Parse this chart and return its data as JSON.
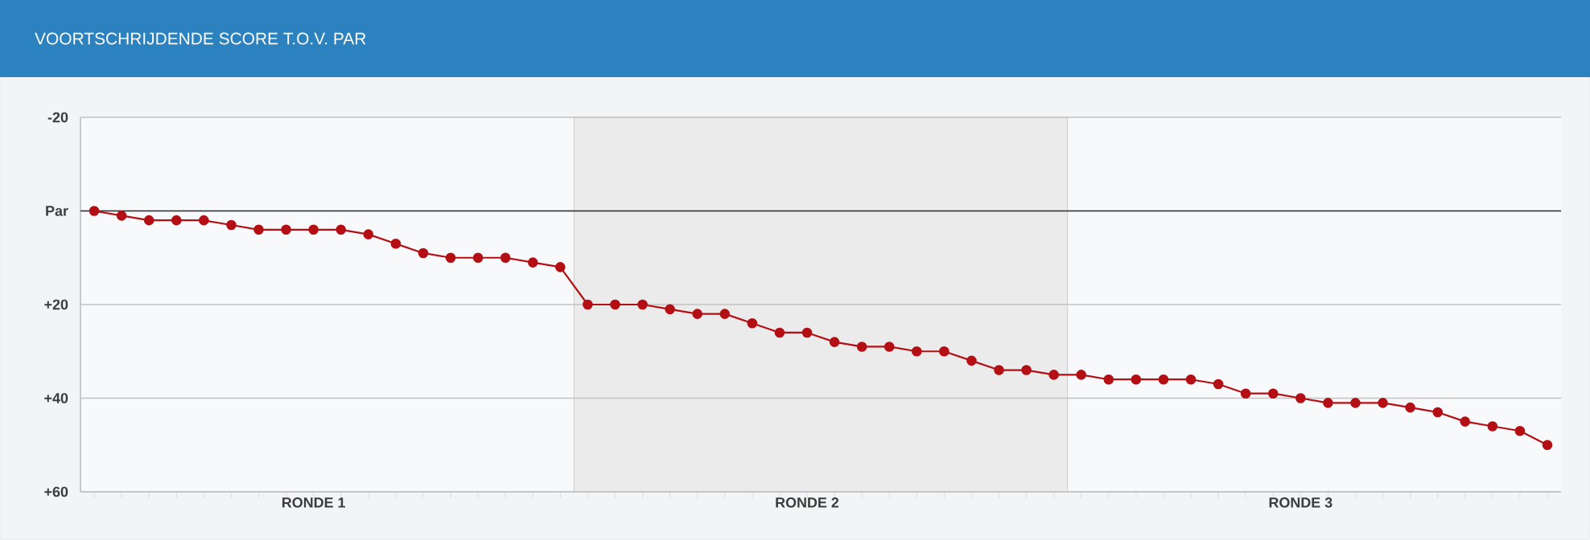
{
  "chart_data": {
    "type": "line",
    "title": "VOORTSCHRIJDENDE SCORE T.O.V. PAR",
    "categories": [
      null,
      null,
      null,
      null,
      null,
      null,
      null,
      null,
      "RONDE 1",
      null,
      null,
      null,
      null,
      null,
      null,
      null,
      null,
      null,
      null,
      null,
      null,
      null,
      null,
      null,
      null,
      null,
      "RONDE 2",
      null,
      null,
      null,
      null,
      null,
      null,
      null,
      null,
      null,
      null,
      null,
      null,
      null,
      null,
      null,
      null,
      null,
      "RONDE 3",
      null,
      null,
      null,
      null,
      null,
      null,
      null,
      null,
      null
    ],
    "series": [
      {
        "color": "#b30f14",
        "values": [
          0,
          1,
          2,
          2,
          2,
          3,
          4,
          4,
          4,
          4,
          5,
          7,
          9,
          10,
          10,
          10,
          11,
          12,
          20,
          20,
          20,
          21,
          22,
          22,
          24,
          26,
          26,
          28,
          29,
          29,
          30,
          30,
          32,
          34,
          34,
          35,
          35,
          36,
          36,
          36,
          36,
          37,
          39,
          39,
          40,
          41,
          41,
          41,
          42,
          43,
          45,
          46,
          47,
          50
        ]
      }
    ],
    "ylim": [
      60,
      -20
    ],
    "yticks": [
      -20,
      {
        "value": 0,
        "label": "Par"
      },
      {
        "value": 20,
        "label": "+20"
      },
      {
        "value": 40,
        "label": "+40"
      },
      {
        "value": 60,
        "label": "+60"
      }
    ],
    "grid": "y",
    "marker": "circle",
    "line_style": "solid",
    "ref_lines": [
      {
        "axis": "y",
        "value": 0,
        "color": "#333333"
      }
    ]
  }
}
